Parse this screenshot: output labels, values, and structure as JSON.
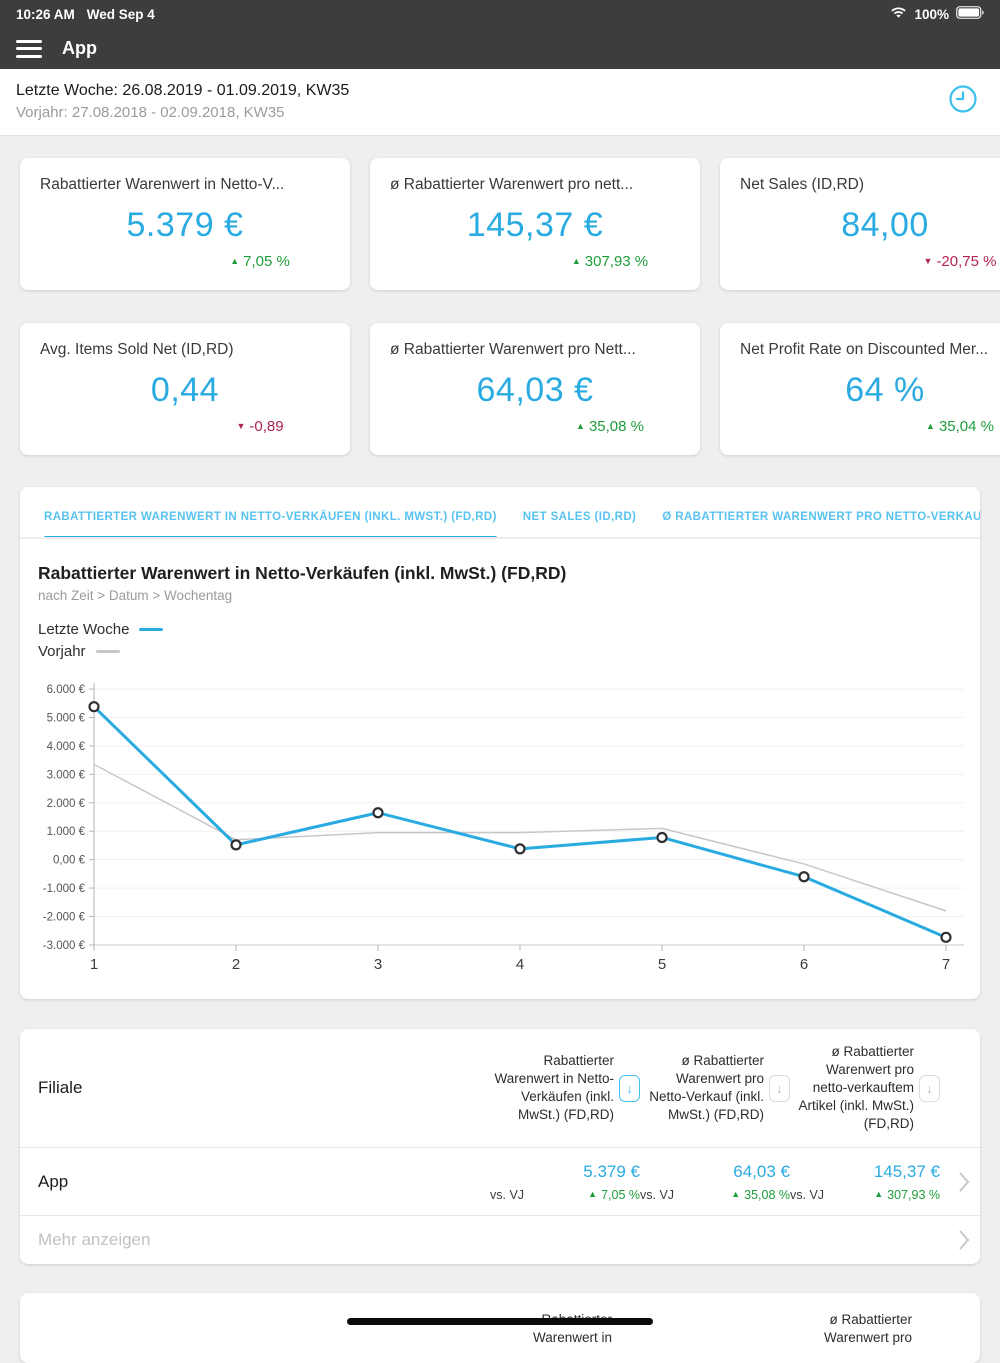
{
  "colors": {
    "accent": "#29abe2",
    "series_prev": "#c7c7c9",
    "green": "#1f9d3c",
    "red": "#b0254f"
  },
  "status_bar": {
    "time": "10:26 AM",
    "date": "Wed Sep 4",
    "battery": "100%"
  },
  "nav": {
    "title": "App"
  },
  "period_header": {
    "current": "Letzte Woche: 26.08.2019 - 01.09.2019, KW35",
    "previous": "Vorjahr: 27.08.2018 - 02.09.2018, KW35"
  },
  "kpi_cards": [
    {
      "title": "Rabattierter Warenwert in Netto-V...",
      "value": "5.379 €",
      "delta": "7,05 %",
      "direction": "up"
    },
    {
      "title": "ø Rabattierter Warenwert pro nett...",
      "value": "145,37 €",
      "delta": "307,93 %",
      "direction": "up"
    },
    {
      "title": "Net Sales (ID,RD)",
      "value": "84,00",
      "delta": "-20,75 %",
      "direction": "down"
    },
    {
      "title": "Avg. Items Sold Net (ID,RD)",
      "value": "0,44",
      "delta": "-0,89",
      "direction": "down"
    },
    {
      "title": "ø Rabattierter Warenwert pro Nett...",
      "value": "64,03 €",
      "delta": "35,08 %",
      "direction": "up"
    },
    {
      "title": "Net Profit Rate on Discounted Mer...",
      "value": "64 %",
      "delta": "35,04 %",
      "direction": "up"
    }
  ],
  "chart_section": {
    "tabs": [
      {
        "label": "RABATTIERTER WARENWERT IN NETTO-VERKÄUFEN (INKL. MWST.) (FD,RD)",
        "active": true
      },
      {
        "label": "NET SALES (ID,RD)",
        "active": false
      },
      {
        "label": "Ø RABATTIERTER WARENWERT PRO NETTO-VERKAUF (INKL. MWST.) (FD,RD)",
        "active": false
      }
    ],
    "title": "Rabattierter Warenwert in Netto-Verkäufen (inkl. MwSt.) (FD,RD)",
    "subtitle": "nach Zeit > Datum > Wochentag"
  },
  "chart_data": {
    "type": "line",
    "title": "Rabattierter Warenwert in Netto-Verkäufen (inkl. MwSt.) (FD,RD)",
    "xlabel": "",
    "ylabel": "",
    "x": [
      "1",
      "2",
      "3",
      "4",
      "5",
      "6",
      "7"
    ],
    "series": [
      {
        "name": "Letzte Woche",
        "color": "#29abe2",
        "markers": true,
        "values": [
          5379,
          520,
          1650,
          380,
          780,
          -600,
          -2730
        ]
      },
      {
        "name": "Vorjahr",
        "color": "#c7c7c9",
        "markers": false,
        "values": [
          3350,
          700,
          950,
          950,
          1100,
          -150,
          -1800
        ]
      }
    ],
    "ylim": [
      -3000,
      6000
    ],
    "grid": true,
    "legend_position": "top-left",
    "yticks": [
      {
        "v": 6000,
        "label": "6.000 €"
      },
      {
        "v": 5000,
        "label": "5.000 €"
      },
      {
        "v": 4000,
        "label": "4.000 €"
      },
      {
        "v": 3000,
        "label": "3.000 €"
      },
      {
        "v": 2000,
        "label": "2.000 €"
      },
      {
        "v": 1000,
        "label": "1.000 €"
      },
      {
        "v": 0,
        "label": "0,00 €"
      },
      {
        "v": -1000,
        "label": "-1.000 €"
      },
      {
        "v": -2000,
        "label": "-2.000 €"
      },
      {
        "v": -3000,
        "label": "-3.000 €"
      }
    ]
  },
  "table": {
    "group_label": "Filiale",
    "columns": [
      {
        "header": "Rabattierter Warenwert in Netto-Verkäufen (inkl. MwSt.) (FD,RD)",
        "sort_icon": "↓",
        "sort_active": true
      },
      {
        "header": "ø Rabattierter Warenwert pro Netto-Verkauf (inkl. MwSt.) (FD,RD)",
        "sort_icon": "↓",
        "sort_active": false
      },
      {
        "header": "ø Rabattierter Warenwert pro netto-verkauftem Artikel (inkl. MwSt.) (FD,RD)",
        "sort_icon": "↓",
        "sort_active": false
      }
    ],
    "rows": [
      {
        "name": "App",
        "cells": [
          {
            "value": "5.379 €",
            "vs": "vs. VJ",
            "delta": "7,05 %",
            "direction": "up"
          },
          {
            "value": "64,03 €",
            "vs": "vs. VJ",
            "delta": "35,08 %",
            "direction": "up"
          },
          {
            "value": "145,37 €",
            "vs": "vs. VJ",
            "delta": "307,93 %",
            "direction": "up"
          }
        ]
      }
    ],
    "more_label": "Mehr anzeigen"
  },
  "bottom_table": {
    "columns": [
      {
        "header": "Rabattierter Warenwert in"
      },
      {
        "header": "ø Rabattierter Warenwert pro"
      }
    ]
  }
}
